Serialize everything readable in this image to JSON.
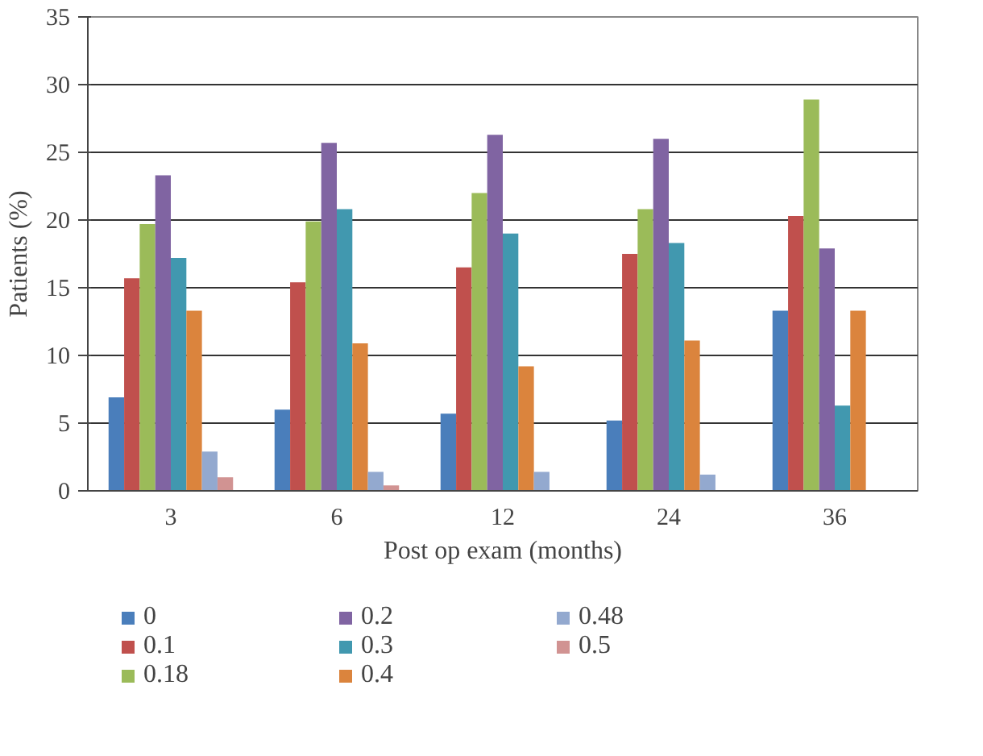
{
  "chart_data": {
    "type": "bar",
    "xlabel": "Post op exam (months)",
    "ylabel": "Patients (%)",
    "categories": [
      "3",
      "6",
      "12",
      "24",
      "36"
    ],
    "series": [
      {
        "name": "0",
        "color": "#4a7ebb",
        "values": [
          6.9,
          6.0,
          5.7,
          5.2,
          13.3
        ]
      },
      {
        "name": "0.1",
        "color": "#c0504d",
        "values": [
          15.7,
          15.4,
          16.5,
          17.5,
          20.3
        ]
      },
      {
        "name": "0.18",
        "color": "#9bbb59",
        "values": [
          19.7,
          19.9,
          22.0,
          20.8,
          28.9
        ]
      },
      {
        "name": "0.2",
        "color": "#8064a2",
        "values": [
          23.3,
          25.7,
          26.3,
          26.0,
          17.9
        ]
      },
      {
        "name": "0.3",
        "color": "#4198af",
        "values": [
          17.2,
          20.8,
          19.0,
          18.3,
          6.3
        ]
      },
      {
        "name": "0.4",
        "color": "#db843d",
        "values": [
          13.3,
          10.9,
          9.2,
          11.1,
          13.3
        ]
      },
      {
        "name": "0.48",
        "color": "#93a9cf",
        "values": [
          2.9,
          1.4,
          1.4,
          1.2,
          null
        ]
      },
      {
        "name": "0.5",
        "color": "#d19392",
        "values": [
          1.0,
          0.4,
          null,
          null,
          null
        ]
      }
    ],
    "ylim": [
      0,
      35
    ],
    "yticks": [
      0,
      5,
      10,
      15,
      20,
      25,
      30,
      35
    ],
    "grid": "y",
    "legend": "bottom"
  }
}
